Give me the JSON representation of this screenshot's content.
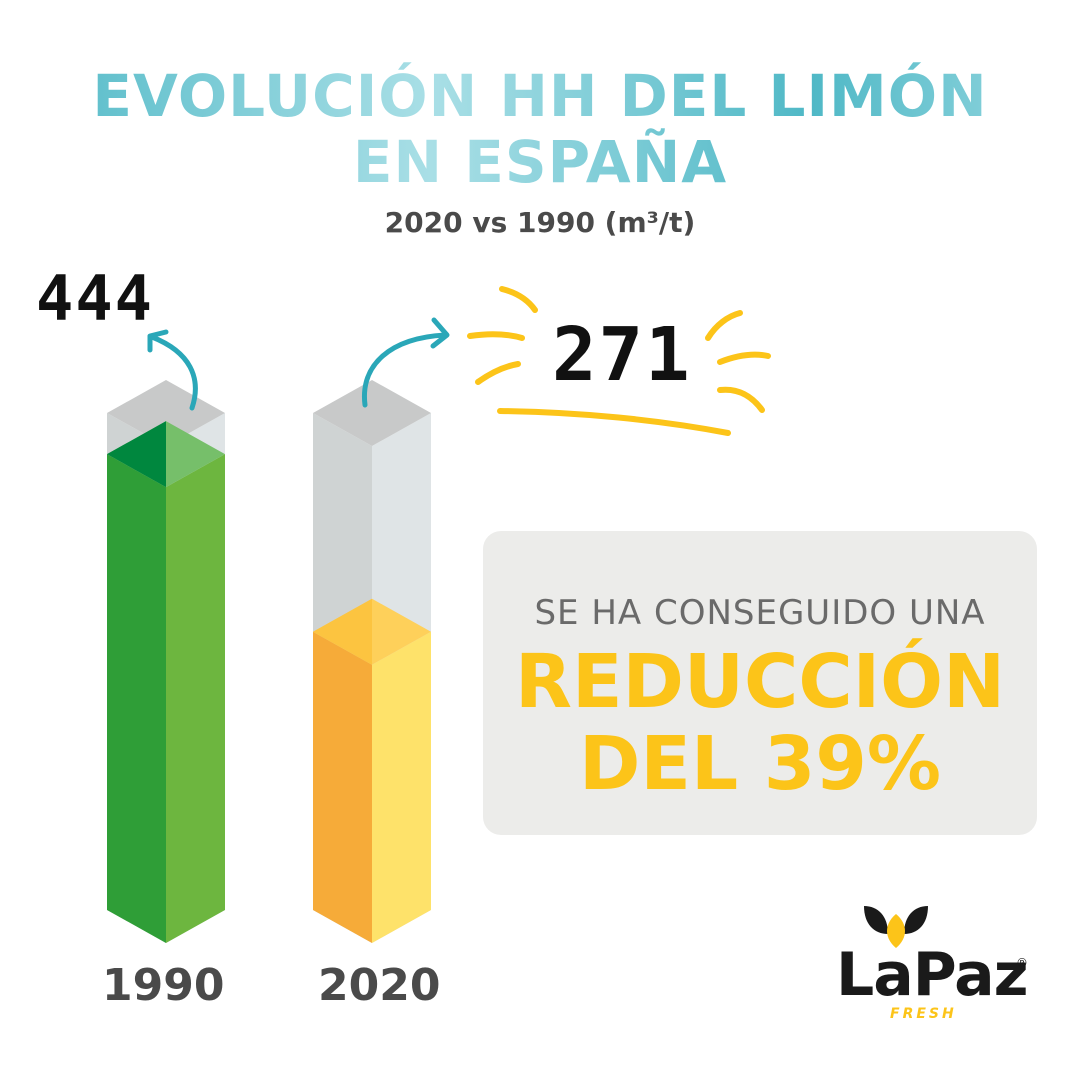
{
  "title_line1": "EVOLUCIÓN HH DEL LIMÓN",
  "title_line2": "EN ESPAÑA",
  "subtitle": "2020 vs 1990 (m³/t)",
  "callout": {
    "line1": "SE HA CONSEGUIDO UNA",
    "line2": "REDUCCIÓN",
    "line3": "DEL 39%"
  },
  "logo": {
    "name": "LaPaz",
    "registered": "®",
    "sub": "FRESH",
    "icon": "leaves-icon"
  },
  "colors": {
    "title": "#5ec0cc",
    "bar_1990": "#2f9e37",
    "bar_2020": "#f6ab39",
    "highlight": "#fcc419",
    "arrow": "#2aa7b8"
  },
  "chart_data": {
    "type": "bar",
    "categories": [
      "1990",
      "2020"
    ],
    "values": [
      444,
      271
    ],
    "value_labels": [
      "444",
      "271"
    ],
    "title": "EVOLUCIÓN HH DEL LIMÓN EN ESPAÑA",
    "subtitle": "2020 vs 1990 (m³/t)",
    "unit": "m³/t",
    "ylim": [
      0,
      750
    ],
    "grid": false,
    "legend": "none"
  }
}
